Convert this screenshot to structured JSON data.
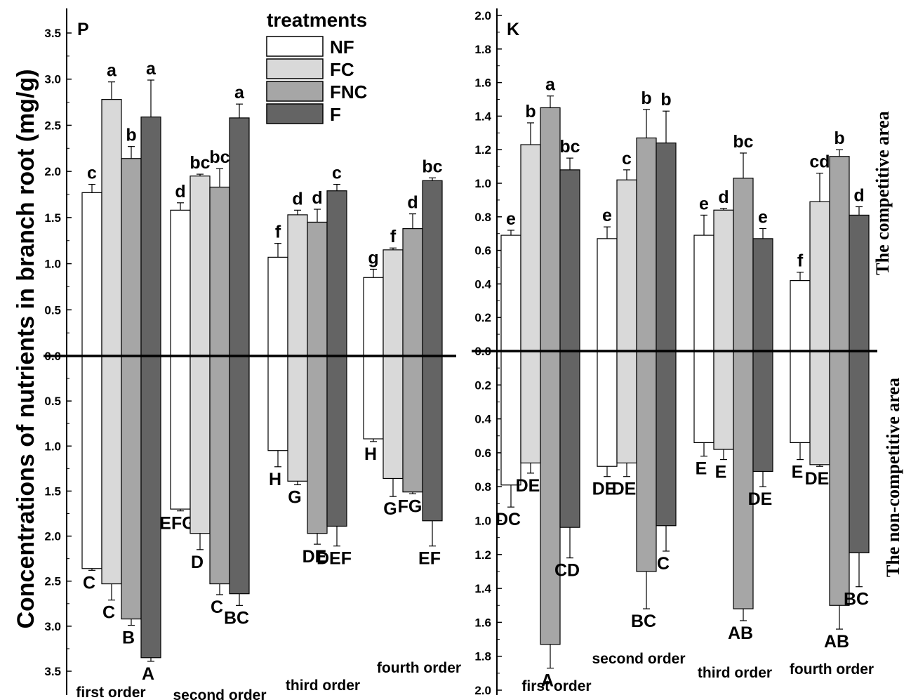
{
  "ylabel": "Concentrations of nutrients in branch root (mg/g)",
  "area_labels": {
    "competitive": "The competitive area",
    "noncompetitive": "The non-competitive area"
  },
  "legend": {
    "title": "treatments",
    "items": [
      {
        "name": "NF",
        "color": "#ffffff"
      },
      {
        "name": "FC",
        "color": "#d9d9d9"
      },
      {
        "name": "FNC",
        "color": "#a6a6a6"
      },
      {
        "name": "F",
        "color": "#646464"
      }
    ]
  },
  "chart_data": [
    {
      "type": "bar",
      "panel": "P",
      "categories": [
        "first order",
        "second order",
        "third order",
        "fourth order"
      ],
      "series": [
        {
          "name": "NF",
          "up": [
            1.77,
            1.58,
            1.07,
            0.85
          ],
          "up_err": [
            0.09,
            0.08,
            0.15,
            0.09
          ],
          "up_sig": [
            "c",
            "d",
            "f",
            "g"
          ],
          "down": [
            2.36,
            1.7,
            1.05,
            0.92
          ],
          "down_err": [
            0.02,
            0.02,
            0.18,
            0.03
          ],
          "down_sig": [
            "C",
            "EFG",
            "H",
            "H"
          ]
        },
        {
          "name": "FC",
          "up": [
            2.78,
            1.95,
            1.53,
            1.15
          ],
          "up_err": [
            0.19,
            0.02,
            0.05,
            0.02
          ],
          "up_sig": [
            "a",
            "bc",
            "d",
            "f"
          ],
          "down": [
            2.53,
            1.97,
            1.39,
            1.36
          ],
          "down_err": [
            0.18,
            0.18,
            0.04,
            0.2
          ],
          "down_sig": [
            "C",
            "D",
            "G",
            "G"
          ]
        },
        {
          "name": "FNC",
          "up": [
            2.14,
            1.83,
            1.45,
            1.38
          ],
          "up_err": [
            0.13,
            0.2,
            0.14,
            0.16
          ],
          "up_sig": [
            "b",
            "bc",
            "d",
            "d"
          ],
          "down": [
            2.92,
            2.53,
            1.97,
            1.51
          ],
          "down_err": [
            0.07,
            0.12,
            0.12,
            0.02
          ],
          "down_sig": [
            "B",
            "C",
            "DE",
            "FG"
          ]
        },
        {
          "name": "F",
          "up": [
            2.59,
            2.58,
            1.79,
            1.9
          ],
          "up_err": [
            0.4,
            0.15,
            0.07,
            0.03
          ],
          "up_sig": [
            "a",
            "a",
            "c",
            "bc"
          ],
          "down": [
            3.35,
            2.64,
            1.89,
            1.83
          ],
          "down_err": [
            0.04,
            0.13,
            0.22,
            0.28
          ],
          "down_sig": [
            "A",
            "BC",
            "DEF",
            "EF"
          ]
        }
      ],
      "yticks_up": [
        "0.0",
        "0.5",
        "1.0",
        "1.5",
        "2.0",
        "2.5",
        "3.0",
        "3.5"
      ],
      "yticks_down": [
        "0.5",
        "1.0",
        "1.5",
        "2.0",
        "2.5",
        "3.0",
        "3.5"
      ],
      "ylim_up": [
        0,
        3.8
      ],
      "ylim_down": [
        0,
        3.8
      ]
    },
    {
      "type": "bar",
      "panel": "K",
      "categories": [
        "first order",
        "second order",
        "third order",
        "fourth order"
      ],
      "series": [
        {
          "name": "NF",
          "up": [
            0.69,
            0.67,
            0.69,
            0.42
          ],
          "up_err": [
            0.03,
            0.07,
            0.12,
            0.05
          ],
          "up_sig": [
            "e",
            "e",
            "e",
            "f"
          ],
          "down": [
            0.79,
            0.68,
            0.54,
            0.54
          ],
          "down_err": [
            0.13,
            0.06,
            0.08,
            0.1
          ],
          "down_sig": [
            "DC",
            "DE",
            "E",
            "E"
          ]
        },
        {
          "name": "FC",
          "up": [
            1.23,
            1.02,
            0.84,
            0.89
          ],
          "up_err": [
            0.13,
            0.06,
            0.01,
            0.17
          ],
          "up_sig": [
            "b",
            "c",
            "d",
            "cd"
          ],
          "down": [
            0.66,
            0.66,
            0.58,
            0.67
          ],
          "down_err": [
            0.06,
            0.08,
            0.06,
            0.01
          ],
          "down_sig": [
            "DE",
            "DE",
            "E",
            "DE"
          ]
        },
        {
          "name": "FNC",
          "up": [
            1.45,
            1.27,
            1.03,
            1.16
          ],
          "up_err": [
            0.07,
            0.17,
            0.15,
            0.04
          ],
          "up_sig": [
            "a",
            "b",
            "bc",
            "b"
          ],
          "down": [
            1.73,
            1.3,
            1.52,
            1.5
          ],
          "down_err": [
            0.14,
            0.22,
            0.07,
            0.14
          ],
          "down_sig": [
            "A",
            "BC",
            "AB",
            "AB"
          ]
        },
        {
          "name": "F",
          "up": [
            1.08,
            1.24,
            0.67,
            0.81
          ],
          "up_err": [
            0.07,
            0.19,
            0.06,
            0.05
          ],
          "up_sig": [
            "bc",
            "b",
            "e",
            "d"
          ],
          "down": [
            1.04,
            1.03,
            0.71,
            1.19
          ],
          "down_err": [
            0.18,
            0.15,
            0.09,
            0.2
          ],
          "down_sig": [
            "CD",
            "C",
            "DE",
            "BC"
          ]
        }
      ],
      "yticks_up": [
        "0.0",
        "0.2",
        "0.4",
        "0.6",
        "0.8",
        "1.0",
        "1.2",
        "1.4",
        "1.6",
        "1.8",
        "2.0"
      ],
      "yticks_down": [
        "0.2",
        "0.4",
        "0.6",
        "0.8",
        "1.0",
        "1.2",
        "1.4",
        "1.6",
        "1.8",
        "2.0"
      ],
      "ylim_up": [
        0,
        2.0
      ],
      "ylim_down": [
        0,
        2.0
      ]
    }
  ]
}
